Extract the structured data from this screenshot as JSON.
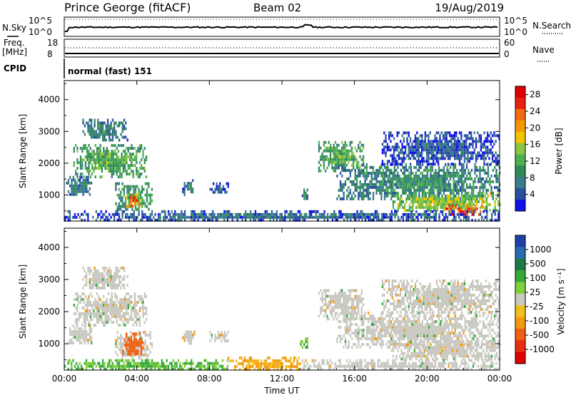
{
  "header": {
    "station": "Prince George (fitACF)",
    "beam": "Beam 02",
    "date": "19/Aug/2019"
  },
  "strip": {
    "nsky_label": "N.Sky",
    "nsky_ticks": [
      "10^5",
      "10^0"
    ],
    "nsearch_label": "N.Search",
    "nsearch_ticks": [
      "10^5",
      "10^0"
    ],
    "freq_label": "Freq.",
    "freq_unit": "[MHz]",
    "freq_ticks": [
      "18",
      "8"
    ],
    "nave_label": "Nave",
    "nave_ticks": [
      "60",
      "0"
    ],
    "cpid_label": "CPID",
    "cpid_value": "normal (fast) 151"
  },
  "colors": {
    "power_scale": [
      "#1010e8",
      "#2a4fa0",
      "#3a7b8c",
      "#2e8b57",
      "#4cb050",
      "#8cc63f",
      "#f5c400",
      "#f59a00",
      "#f36a10",
      "#e82010",
      "#e00000"
    ],
    "velocity_scale": [
      "#1e3ea8",
      "#2a6ab0",
      "#1d7a45",
      "#37a83a",
      "#7fcf3a",
      "#c8c8c0",
      "#f0c020",
      "#f39a10",
      "#f06010",
      "#e63010",
      "#e00000"
    ]
  },
  "chart_data": [
    {
      "type": "heatmap",
      "name": "power",
      "ylabel": "Slant Range [km]",
      "yticks": [
        1000,
        2000,
        3000,
        4000
      ],
      "ylim": [
        180,
        4600
      ],
      "xlim": [
        0,
        24
      ],
      "xticks": [
        "00:00",
        "04:00",
        "08:00",
        "12:00",
        "16:00",
        "20:00",
        "00:00"
      ],
      "colorbar_label": "Power [dB]",
      "colorbar_ticks": [
        "4",
        "8",
        "12",
        "16",
        "20",
        "24",
        "28"
      ],
      "colorbar_range": [
        0,
        30
      ],
      "regions": [
        {
          "t": [
            1.0,
            3.5
          ],
          "r": [
            2700,
            3400
          ],
          "v": 9
        },
        {
          "t": [
            0.5,
            4.5
          ],
          "r": [
            1600,
            2600
          ],
          "v": 13
        },
        {
          "t": [
            0.1,
            1.5
          ],
          "r": [
            1000,
            1600
          ],
          "v": 8
        },
        {
          "t": [
            2.8,
            4.8
          ],
          "r": [
            550,
            1400
          ],
          "v": 12
        },
        {
          "t": [
            3.4,
            4.2
          ],
          "r": [
            650,
            1050
          ],
          "v": 24
        },
        {
          "t": [
            6.5,
            7.2
          ],
          "r": [
            1050,
            1500
          ],
          "v": 8
        },
        {
          "t": [
            8.0,
            9.0
          ],
          "r": [
            1100,
            1400
          ],
          "v": 7
        },
        {
          "t": [
            13.0,
            13.4
          ],
          "r": [
            850,
            1200
          ],
          "v": 10
        },
        {
          "t": [
            14.0,
            16.5
          ],
          "r": [
            1800,
            2700
          ],
          "v": 13
        },
        {
          "t": [
            15.0,
            24.0
          ],
          "r": [
            900,
            2000
          ],
          "v": 10
        },
        {
          "t": [
            18.0,
            24.0
          ],
          "r": [
            500,
            1100
          ],
          "v": 16
        },
        {
          "t": [
            21.0,
            23.0
          ],
          "r": [
            350,
            700
          ],
          "v": 26
        },
        {
          "t": [
            17.5,
            24.0
          ],
          "r": [
            2000,
            3000
          ],
          "v": 6
        },
        {
          "t": [
            0.0,
            24.0
          ],
          "r": [
            220,
            520
          ],
          "v": 7
        }
      ]
    },
    {
      "type": "heatmap",
      "name": "velocity",
      "ylabel": "Slant Range [km]",
      "xlabel": "Time UT",
      "yticks": [
        1000,
        2000,
        3000,
        4000
      ],
      "ylim": [
        180,
        4600
      ],
      "xlim": [
        0,
        24
      ],
      "xticks": [
        "00:00",
        "04:00",
        "08:00",
        "12:00",
        "16:00",
        "20:00",
        "00:00"
      ],
      "colorbar_label": "Velocity [m s⁻¹]",
      "colorbar_ticks": [
        "1000",
        "500",
        "100",
        "25",
        "-25",
        "-100",
        "-500",
        "-1000"
      ],
      "regions": [
        {
          "t": [
            1.0,
            3.5
          ],
          "r": [
            2700,
            3400
          ],
          "v": 0
        },
        {
          "t": [
            0.5,
            4.5
          ],
          "r": [
            1600,
            2600
          ],
          "v": 0
        },
        {
          "t": [
            0.1,
            1.5
          ],
          "r": [
            1000,
            1600
          ],
          "v": 0
        },
        {
          "t": [
            2.8,
            4.8
          ],
          "r": [
            550,
            1400
          ],
          "v": 0
        },
        {
          "t": [
            3.2,
            4.3
          ],
          "r": [
            650,
            1350
          ],
          "v": -300
        },
        {
          "t": [
            6.5,
            7.2
          ],
          "r": [
            1050,
            1500
          ],
          "v": 0
        },
        {
          "t": [
            8.0,
            9.0
          ],
          "r": [
            1100,
            1400
          ],
          "v": 0
        },
        {
          "t": [
            13.0,
            13.4
          ],
          "r": [
            850,
            1200
          ],
          "v": 60
        },
        {
          "t": [
            14.0,
            16.5
          ],
          "r": [
            1800,
            2700
          ],
          "v": 0
        },
        {
          "t": [
            15.0,
            24.0
          ],
          "r": [
            900,
            2000
          ],
          "v": 0
        },
        {
          "t": [
            18.0,
            24.0
          ],
          "r": [
            500,
            1100
          ],
          "v": 0
        },
        {
          "t": [
            17.5,
            24.0
          ],
          "r": [
            2000,
            3000
          ],
          "v": 0
        },
        {
          "t": [
            0.0,
            9.0
          ],
          "r": [
            220,
            520
          ],
          "v": 60
        },
        {
          "t": [
            9.0,
            13.0
          ],
          "r": [
            220,
            600
          ],
          "v": -60
        },
        {
          "t": [
            13.0,
            24.0
          ],
          "r": [
            220,
            520
          ],
          "v": 0
        }
      ]
    }
  ]
}
